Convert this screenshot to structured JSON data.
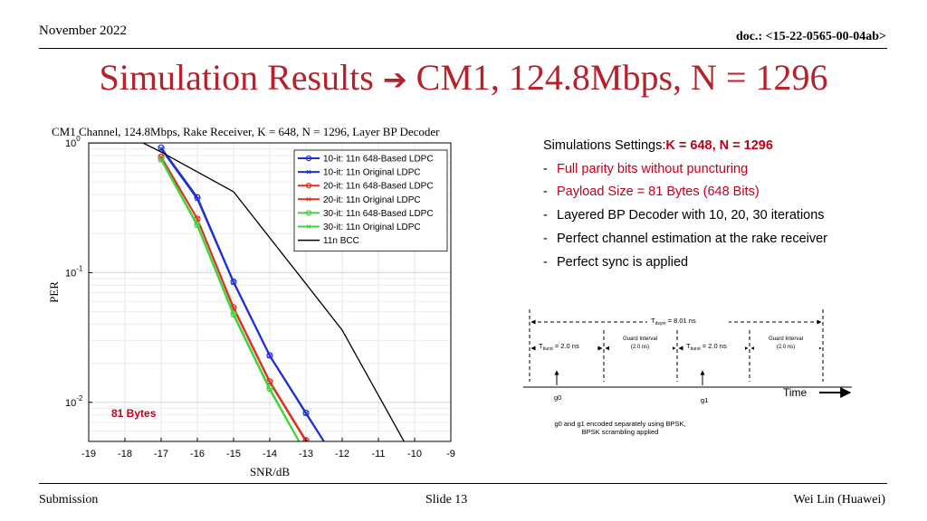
{
  "header": {
    "date": "November 2022",
    "doc_id": "doc.: <15-22-0565-00-04ab>"
  },
  "slide": {
    "title_left": "Simulation Results",
    "title_arrow": "➔",
    "title_right": "CM1, 124.8Mbps, N = 1296"
  },
  "chart_data": {
    "type": "line",
    "title": "CM1 Channel, 124.8Mbps, Rake Receiver, K = 648, N = 1296, Layer BP Decoder",
    "xlabel": "SNR/dB",
    "ylabel": "PER",
    "xlim": [
      -19,
      -9
    ],
    "ylim": [
      0.005,
      1
    ],
    "yscale": "log",
    "x_ticks": [
      "-19",
      "-18",
      "-17",
      "-16",
      "-15",
      "-14",
      "-13",
      "-12",
      "-11",
      "-10",
      "-9"
    ],
    "y_ticks": [
      {
        "base": "10",
        "exp": "0"
      },
      {
        "base": "10",
        "exp": "-1"
      },
      {
        "base": "10",
        "exp": "-2"
      }
    ],
    "grid": true,
    "legend_position": "top-right",
    "annotation": "81 Bytes",
    "annotation_color": "#c0001a",
    "series": [
      {
        "name": "10-it: 11n 648-Based LDPC",
        "color": "#1f2fd6",
        "marker": "circle",
        "x": [
          -17,
          -16,
          -15,
          -14,
          -13,
          -12.4
        ],
        "y": [
          0.92,
          0.38,
          0.085,
          0.023,
          0.0083,
          0.0045
        ]
      },
      {
        "name": "10-it: 11n Original LDPC",
        "color": "#1f2fd6",
        "marker": "x",
        "x": [
          -17,
          -16,
          -15,
          -14,
          -13,
          -12.4
        ],
        "y": [
          0.9,
          0.37,
          0.084,
          0.0228,
          0.0082,
          0.0045
        ]
      },
      {
        "name": "20-it: 11n 648-Based LDPC",
        "color": "#e03020",
        "marker": "circle",
        "x": [
          -17,
          -16,
          -15,
          -14,
          -13,
          -12.8
        ],
        "y": [
          0.78,
          0.26,
          0.054,
          0.0145,
          0.0051,
          0.0045
        ]
      },
      {
        "name": "20-it: 11n Original LDPC",
        "color": "#e03020",
        "marker": "x",
        "x": [
          -17,
          -16,
          -15,
          -14,
          -13,
          -12.8
        ],
        "y": [
          0.78,
          0.26,
          0.053,
          0.0143,
          0.005,
          0.0045
        ]
      },
      {
        "name": "30-it: 11n 648-Based LDPC",
        "color": "#3ed43e",
        "marker": "circle",
        "x": [
          -17,
          -16,
          -15,
          -14,
          -13.1
        ],
        "y": [
          0.75,
          0.235,
          0.048,
          0.0128,
          0.0045
        ]
      },
      {
        "name": "30-it: 11n Original LDPC",
        "color": "#3ed43e",
        "marker": "x",
        "x": [
          -17,
          -16,
          -15,
          -14,
          -13.1
        ],
        "y": [
          0.74,
          0.23,
          0.047,
          0.0125,
          0.0045
        ]
      },
      {
        "name": "11n BCC",
        "color": "#000000",
        "marker": "none",
        "x": [
          -19,
          -17.5,
          -17,
          -15,
          -13,
          -12,
          -10.2
        ],
        "y": [
          1,
          1,
          0.85,
          0.42,
          0.082,
          0.036,
          0.0045
        ]
      }
    ]
  },
  "settings": {
    "heading_label": "Simulations Settings: ",
    "heading_values": "K = 648, N = 1296",
    "items": [
      {
        "text": "Full parity bits without puncturing",
        "highlight": true
      },
      {
        "text": "Payload Size = 81 Bytes (648 Bits)",
        "highlight": true
      },
      {
        "text": "Layered BP Decoder with 10, 20, 30 iterations",
        "highlight": false
      },
      {
        "text": "Perfect channel estimation at the rake receiver",
        "highlight": false
      },
      {
        "text": "Perfect sync is applied",
        "highlight": false
      }
    ],
    "dash": "-"
  },
  "timing": {
    "tsym": "T",
    "tsym_sub": "dsym",
    "tsym_value": " = 8.01 ns",
    "tburst": "T",
    "tburst_sub": "burst",
    "tburst_value": " = 2.0 ns",
    "guard_label": "Guard Interval",
    "guard_value": "(2.0 ns)",
    "g0": "g0",
    "g1": "g1",
    "time_label": "Time",
    "note_line1": "g0 and g1 encoded separately using BPSK,",
    "note_line2": "BPSK scrambling applied"
  },
  "footer": {
    "left": "Submission",
    "center": "Slide 13",
    "right": "Wei Lin (Huawei)"
  }
}
